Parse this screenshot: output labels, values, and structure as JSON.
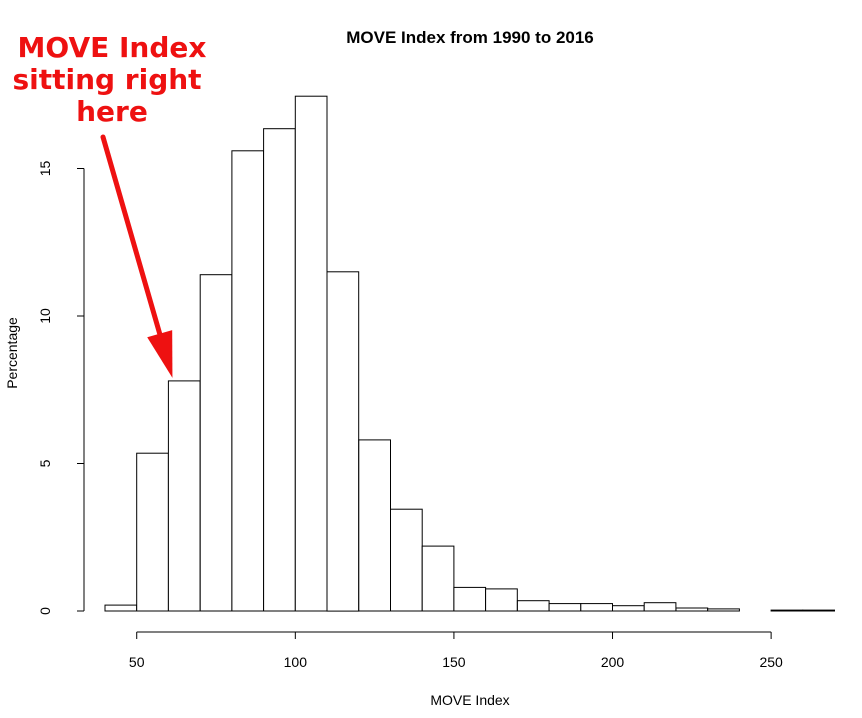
{
  "chart_data": {
    "type": "histogram",
    "title": "MOVE Index from 1990 to 2016",
    "xlabel": "MOVE Index",
    "ylabel": "Percentage",
    "xlim": [
      40,
      272
    ],
    "ylim": [
      0,
      18
    ],
    "bin_width": 10,
    "bins": [
      {
        "start": 40,
        "end": 50,
        "value": 0.2
      },
      {
        "start": 50,
        "end": 60,
        "value": 5.35
      },
      {
        "start": 60,
        "end": 70,
        "value": 7.8
      },
      {
        "start": 70,
        "end": 80,
        "value": 11.4
      },
      {
        "start": 80,
        "end": 90,
        "value": 15.6
      },
      {
        "start": 90,
        "end": 100,
        "value": 16.35
      },
      {
        "start": 100,
        "end": 110,
        "value": 17.45
      },
      {
        "start": 110,
        "end": 120,
        "value": 11.5
      },
      {
        "start": 120,
        "end": 130,
        "value": 5.8
      },
      {
        "start": 130,
        "end": 140,
        "value": 3.45
      },
      {
        "start": 140,
        "end": 150,
        "value": 2.2
      },
      {
        "start": 150,
        "end": 160,
        "value": 0.8
      },
      {
        "start": 160,
        "end": 170,
        "value": 0.75
      },
      {
        "start": 170,
        "end": 180,
        "value": 0.35
      },
      {
        "start": 180,
        "end": 190,
        "value": 0.25
      },
      {
        "start": 190,
        "end": 200,
        "value": 0.25
      },
      {
        "start": 200,
        "end": 210,
        "value": 0.18
      },
      {
        "start": 210,
        "end": 220,
        "value": 0.28
      },
      {
        "start": 220,
        "end": 230,
        "value": 0.1
      },
      {
        "start": 230,
        "end": 240,
        "value": 0.07
      },
      {
        "start": 240,
        "end": 250,
        "value": 0.0
      },
      {
        "start": 250,
        "end": 260,
        "value": 0.03
      },
      {
        "start": 260,
        "end": 270,
        "value": 0.03
      }
    ],
    "x_ticks": [
      50,
      100,
      150,
      200,
      250
    ],
    "x_tick_labels": [
      "50",
      "100",
      "150",
      "200",
      "250"
    ],
    "y_ticks": [
      0,
      5,
      10,
      15
    ],
    "y_tick_labels": [
      "0",
      "5",
      "10",
      "15"
    ],
    "grid": false,
    "legend": "none"
  },
  "annotation": {
    "lines": [
      "MOVE Index",
      "sitting right",
      "here"
    ],
    "color": "#ee1111",
    "points_to_x": 60,
    "points_to_value": 7.8
  }
}
